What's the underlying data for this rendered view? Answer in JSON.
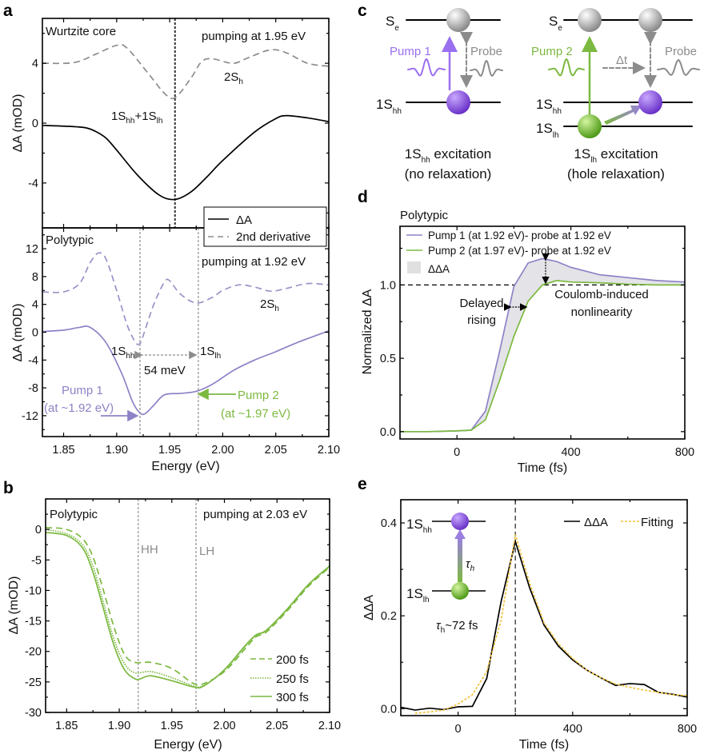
{
  "colors": {
    "purple": "#8e82c6",
    "green": "#7cb940",
    "gray": "#8c8c8c",
    "black": "#000000",
    "fit": "#f2c23c",
    "purple_sphere": "#8a55e0",
    "green_sphere": "#7fc93a",
    "gray_sphere": "#c8c8c8"
  },
  "panel_labels": {
    "a": "a",
    "b": "b",
    "c": "c",
    "d": "d",
    "e": "e"
  },
  "panel_a": {
    "top_title": "Wurtzite core",
    "top_pump": "pumping at 1.95 eV",
    "top_2sh": {
      "main": "2S",
      "sub": "h"
    },
    "top_peak": {
      "a": "1S",
      "a_sub": "hh",
      "plus": "+1S",
      "b_sub": "lh"
    },
    "legend": [
      "ΔA",
      "2nd derivative"
    ],
    "bottom_title": "Polytypic",
    "bottom_pump": "pumping at 1.92 eV",
    "bottom_2sh": {
      "main": "2S",
      "sub": "h"
    },
    "hh": {
      "main": "1S",
      "sub": "hh"
    },
    "lh": {
      "main": "1S",
      "sub": "lh"
    },
    "splitting": "54 meV",
    "pump1": [
      "Pump 1",
      "(at ~1.92 eV)"
    ],
    "pump2": [
      "Pump 2",
      "(at ~1.97 eV)"
    ],
    "ylabel": "ΔA (mOD)",
    "xlabel": "Energy (eV)"
  },
  "panel_b": {
    "title": "Polytypic",
    "pump": "pumping at 2.03 eV",
    "hh": "HH",
    "lh": "LH",
    "ylabel": "ΔA (mOD)",
    "xlabel": "Energy (eV)",
    "legend": [
      "200 fs",
      "250 fs",
      "300 fs"
    ]
  },
  "panel_c": {
    "se": {
      "main": "S",
      "sub": "e"
    },
    "hh": {
      "main": "1S",
      "sub": "hh"
    },
    "lh": {
      "main": "1S",
      "sub": "lh"
    },
    "pump1": "Pump 1",
    "pump2": "Pump 2",
    "probe": "Probe",
    "dt": "Δt",
    "left_caption": {
      "main": "1S",
      "sub": "hh",
      "rest": " excitation",
      "line2": "(no relaxation)"
    },
    "right_caption": {
      "main": "1S",
      "sub": "lh",
      "rest": " excitation",
      "line2": "(hole relaxation)"
    }
  },
  "panel_d": {
    "title": "Polytypic",
    "legend": [
      "Pump 1 (at 1.92 eV)- probe at 1.92 eV",
      "Pump 2 (at 1.97 eV)- probe at 1.92 eV",
      "ΔΔA"
    ],
    "delayed": [
      "Delayed",
      "rising"
    ],
    "coulomb": [
      "Coulomb-induced",
      "nonlinearity"
    ],
    "ylabel": "Normalized ΔA",
    "xlabel": "Time (fs)"
  },
  "panel_e": {
    "legend": [
      "ΔΔA",
      "Fitting"
    ],
    "hh": {
      "main": "1S",
      "sub": "hh"
    },
    "lh": {
      "main": "1S",
      "sub": "lh"
    },
    "tau": {
      "main": "τ",
      "sub": "h"
    },
    "tau_value": {
      "main": "τ",
      "sub": "h",
      "rest": "~72 fs"
    },
    "ylabel": "ΔΔA",
    "xlabel": "Time (fs)"
  },
  "chart_data": [
    {
      "id": "a_top",
      "type": "line",
      "xlim": [
        1.83,
        2.1
      ],
      "ylim": [
        -7,
        7
      ],
      "xticks": [],
      "yticks": [
        [
          "-4",
          -4
        ],
        [
          "0",
          0
        ],
        [
          "4",
          4
        ]
      ],
      "vlines": [
        1.955
      ],
      "series": [
        {
          "name": "ΔA",
          "style": "solid",
          "color": "#000000",
          "x": [
            1.83,
            1.85,
            1.87,
            1.88,
            1.89,
            1.9,
            1.92,
            1.94,
            1.955,
            1.97,
            1.985,
            2.0,
            2.03,
            2.05,
            2.06,
            2.08,
            2.1
          ],
          "y": [
            -0.15,
            -0.2,
            -0.3,
            -0.55,
            -1.0,
            -1.8,
            -3.5,
            -4.8,
            -5.1,
            -4.6,
            -3.6,
            -2.5,
            -0.6,
            0.3,
            0.5,
            0.35,
            0.1
          ]
        },
        {
          "name": "2nd derivative",
          "style": "dashed",
          "color": "#8c8c8c",
          "x": [
            1.83,
            1.86,
            1.88,
            1.9,
            1.91,
            1.93,
            1.945,
            1.955,
            1.97,
            1.98,
            1.99,
            2.01,
            2.025,
            2.045,
            2.06,
            2.08,
            2.1
          ],
          "y": [
            4,
            4.05,
            4.6,
            5.2,
            5.0,
            3.3,
            2.0,
            1.7,
            3.0,
            4.1,
            4.3,
            4.0,
            4.4,
            4.9,
            4.7,
            4.0,
            3.8
          ]
        }
      ]
    },
    {
      "id": "a_bottom",
      "type": "line",
      "xlim": [
        1.83,
        2.1
      ],
      "ylim": [
        -15,
        15
      ],
      "xticks": [
        [
          "1.85",
          1.85
        ],
        [
          "1.90",
          1.9
        ],
        [
          "1.95",
          1.95
        ],
        [
          "2.00",
          2.0
        ],
        [
          "2.05",
          2.05
        ],
        [
          "2.10",
          2.1
        ]
      ],
      "yticks": [
        [
          "-12",
          -12
        ],
        [
          "-8",
          -8
        ],
        [
          "-4",
          -4
        ],
        [
          "0",
          0
        ],
        [
          "4",
          4
        ],
        [
          "8",
          8
        ],
        [
          "12",
          12
        ]
      ],
      "vlines": [
        1.922,
        1.977
      ],
      "series": [
        {
          "name": "ΔA",
          "style": "solid",
          "color": "#8e82c6",
          "x": [
            1.83,
            1.85,
            1.865,
            1.875,
            1.89,
            1.905,
            1.915,
            1.922,
            1.927,
            1.935,
            1.945,
            1.96,
            1.975,
            1.99,
            2.01,
            2.03,
            2.05,
            2.07,
            2.1
          ],
          "y": [
            0.1,
            0.3,
            0.7,
            0.7,
            -1.5,
            -6,
            -10,
            -11.6,
            -11.7,
            -10.5,
            -9,
            -8.8,
            -8.5,
            -7.5,
            -5.5,
            -4,
            -2.8,
            -1.5,
            0.2
          ]
        },
        {
          "name": "2nd derivative",
          "style": "dashed",
          "color": "#9a93c8",
          "x": [
            1.83,
            1.85,
            1.865,
            1.875,
            1.883,
            1.89,
            1.9,
            1.91,
            1.918,
            1.922,
            1.925,
            1.935,
            1.945,
            1.95,
            1.96,
            1.975,
            1.99,
            2.0,
            2.015,
            2.03,
            2.045,
            2.06,
            2.08,
            2.1
          ],
          "y": [
            5.8,
            5.8,
            7,
            10,
            11.4,
            10.5,
            6,
            1,
            -1.5,
            -1.6,
            -0.5,
            4,
            7.2,
            7.4,
            5.5,
            4.2,
            5.0,
            6.0,
            6.8,
            6.5,
            5.9,
            6.3,
            7.0,
            6.8
          ]
        }
      ]
    },
    {
      "id": "b",
      "type": "line",
      "xlim": [
        1.83,
        2.1
      ],
      "ylim": [
        -30,
        5
      ],
      "xticks": [
        [
          "1.85",
          1.85
        ],
        [
          "1.90",
          1.9
        ],
        [
          "1.95",
          1.95
        ],
        [
          "2.00",
          2.0
        ],
        [
          "2.05",
          2.05
        ],
        [
          "2.10",
          2.1
        ]
      ],
      "yticks": [
        [
          "-30",
          -30
        ],
        [
          "-25",
          -25
        ],
        [
          "-20",
          -20
        ],
        [
          "-15",
          -15
        ],
        [
          "-10",
          -10
        ],
        [
          "-5",
          -5
        ],
        [
          "0",
          0
        ]
      ],
      "vlines": [
        1.918,
        1.973
      ],
      "series": [
        {
          "name": "200 fs",
          "style": "dashed",
          "color": "#7cb940",
          "x": [
            1.83,
            1.85,
            1.865,
            1.875,
            1.885,
            1.895,
            1.905,
            1.915,
            1.93,
            1.95,
            1.97,
            1.98,
            2.0,
            2.02,
            2.03,
            2.04,
            2.06,
            2.08,
            2.1
          ],
          "y": [
            0.3,
            0,
            -1.5,
            -4.5,
            -10,
            -16,
            -20.5,
            -21.8,
            -21.8,
            -22.8,
            -25.2,
            -25.3,
            -23.3,
            -19.5,
            -17.6,
            -16.8,
            -13.3,
            -9.3,
            -6.2
          ]
        },
        {
          "name": "250 fs",
          "style": "dotted",
          "color": "#7cb940",
          "x": [
            1.83,
            1.85,
            1.865,
            1.875,
            1.885,
            1.895,
            1.905,
            1.915,
            1.93,
            1.95,
            1.97,
            1.98,
            2.0,
            2.02,
            2.03,
            2.04,
            2.06,
            2.08,
            2.1
          ],
          "y": [
            0,
            -0.7,
            -2.5,
            -6,
            -12,
            -18,
            -22,
            -23.5,
            -23.3,
            -24.3,
            -25.6,
            -25.6,
            -23.1,
            -19.2,
            -17.4,
            -16.6,
            -13.1,
            -9.1,
            -6.1
          ]
        },
        {
          "name": "300 fs",
          "style": "solid",
          "color": "#7cb940",
          "x": [
            1.83,
            1.85,
            1.865,
            1.875,
            1.885,
            1.895,
            1.905,
            1.915,
            1.92,
            1.93,
            1.95,
            1.97,
            1.98,
            2.0,
            2.02,
            2.03,
            2.04,
            2.06,
            2.08,
            2.1
          ],
          "y": [
            -0.5,
            -1,
            -3,
            -7,
            -13,
            -19,
            -23,
            -24.5,
            -24.5,
            -24,
            -24.8,
            -25.8,
            -25.7,
            -23,
            -19,
            -17.3,
            -16.5,
            -13,
            -9,
            -6
          ]
        }
      ]
    },
    {
      "id": "d",
      "type": "line",
      "xlim": [
        -200,
        800
      ],
      "ylim": [
        -0.05,
        1.4
      ],
      "xticks": [
        [
          "0",
          0
        ],
        [
          "400",
          400
        ],
        [
          "800",
          800
        ]
      ],
      "yticks": [
        [
          "0.0",
          0
        ],
        [
          "0.5",
          0.5
        ],
        [
          "1.0",
          1.0
        ]
      ],
      "hline": 1.0,
      "series": [
        {
          "name": "Pump 1 (at 1.92 eV)- probe at 1.92 eV",
          "style": "solid",
          "color": "#8e82c6",
          "x": [
            -200,
            -100,
            0,
            50,
            100,
            150,
            200,
            250,
            300,
            350,
            400,
            500,
            600,
            700,
            800
          ],
          "y": [
            0,
            0,
            0.005,
            0.01,
            0.14,
            0.55,
            0.99,
            1.15,
            1.18,
            1.16,
            1.12,
            1.07,
            1.05,
            1.03,
            1.02
          ]
        },
        {
          "name": "Pump 2 (at 1.97 eV)- probe at 1.92 eV",
          "style": "solid",
          "color": "#7cb940",
          "x": [
            -200,
            -100,
            0,
            50,
            100,
            150,
            200,
            250,
            300,
            350,
            400,
            500,
            600,
            700,
            800
          ],
          "y": [
            0,
            0,
            0.005,
            0.01,
            0.08,
            0.35,
            0.65,
            0.89,
            1.0,
            1.03,
            1.02,
            1.015,
            1.005,
            1.0,
            1.0
          ]
        }
      ]
    },
    {
      "id": "e",
      "type": "line",
      "xlim": [
        -200,
        800
      ],
      "ylim": [
        -0.015,
        0.45
      ],
      "xticks": [
        [
          "0",
          0
        ],
        [
          "400",
          400
        ],
        [
          "800",
          800
        ]
      ],
      "yticks": [
        [
          "0.0",
          0
        ],
        [
          "0.2",
          0.2
        ],
        [
          "0.4",
          0.4
        ]
      ],
      "vlines": [
        200
      ],
      "series": [
        {
          "name": "ΔΔA",
          "style": "solid",
          "color": "#000000",
          "x": [
            -200,
            -150,
            -100,
            -50,
            0,
            50,
            100,
            150,
            200,
            250,
            300,
            350,
            400,
            450,
            500,
            550,
            600,
            650,
            700,
            750,
            800
          ],
          "y": [
            0.003,
            -0.003,
            0.001,
            -0.002,
            0.004,
            0.005,
            0.065,
            0.23,
            0.36,
            0.26,
            0.18,
            0.135,
            0.105,
            0.083,
            0.066,
            0.05,
            0.054,
            0.052,
            0.035,
            0.031,
            0.025
          ]
        },
        {
          "name": "Fitting",
          "style": "dashed",
          "color": "#f2c23c",
          "x": [
            -150,
            -100,
            -50,
            0,
            50,
            100,
            150,
            200,
            250,
            300,
            350,
            400,
            450,
            500,
            550,
            600,
            650,
            700,
            750,
            800
          ],
          "y": [
            -0.01,
            -0.007,
            -0.003,
            0.01,
            0.03,
            0.08,
            0.19,
            0.375,
            0.27,
            0.185,
            0.14,
            0.108,
            0.083,
            0.066,
            0.053,
            0.046,
            0.04,
            0.035,
            0.03,
            0.028
          ]
        }
      ]
    }
  ]
}
